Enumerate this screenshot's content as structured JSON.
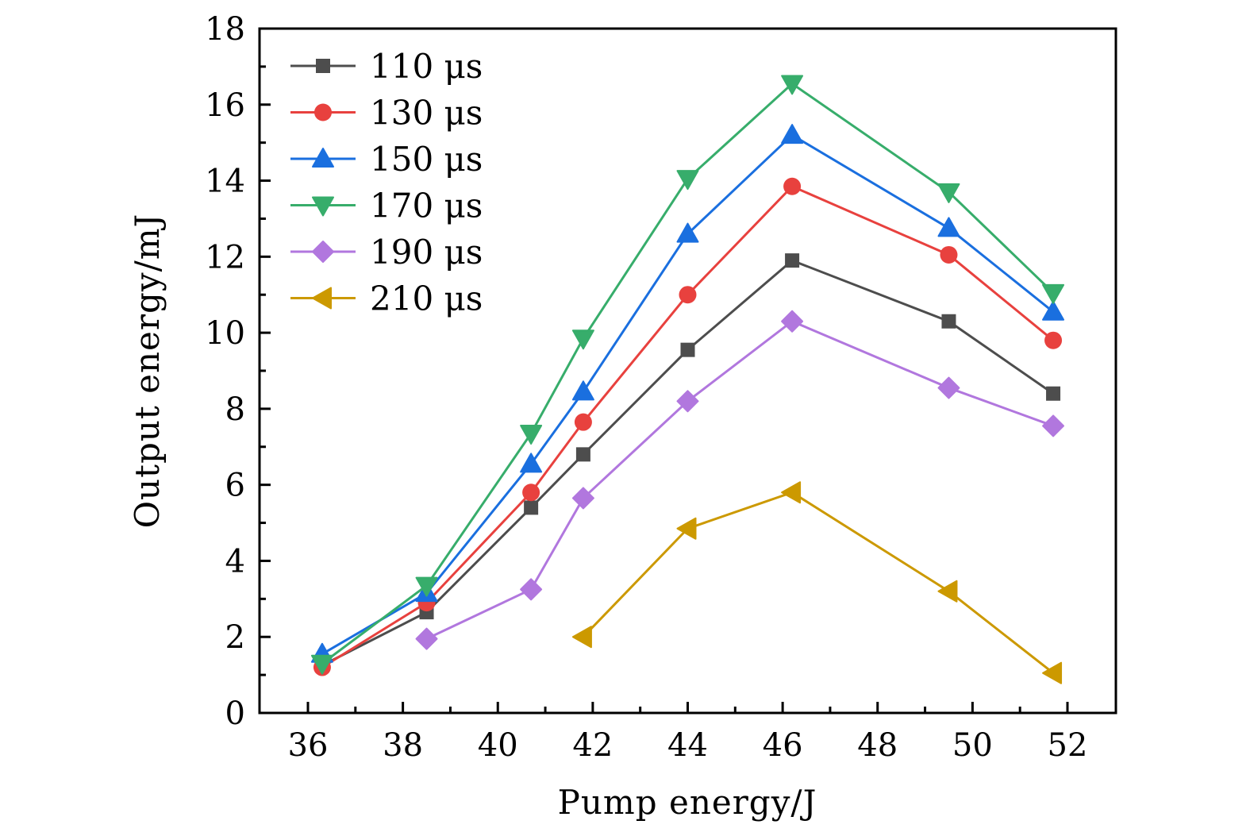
{
  "chart_data": {
    "type": "line",
    "title": "",
    "xlabel": "Pump energy/J",
    "ylabel": "Output energy/mJ",
    "xlim": [
      35,
      53
    ],
    "ylim": [
      0,
      18
    ],
    "x_ticks": [
      36,
      38,
      40,
      42,
      44,
      46,
      48,
      50,
      52
    ],
    "y_ticks": [
      0,
      2,
      4,
      6,
      8,
      10,
      12,
      14,
      16,
      18
    ],
    "grid": false,
    "legend_position": "top-left",
    "series": [
      {
        "name": "110 μs",
        "color": "#4d4d4d",
        "marker": "square",
        "x": [
          36.3,
          38.5,
          40.7,
          41.8,
          44.0,
          46.2,
          49.5,
          51.7
        ],
        "y": [
          1.25,
          2.65,
          5.4,
          6.8,
          9.55,
          11.9,
          10.3,
          8.4
        ]
      },
      {
        "name": "130 μs",
        "color": "#e8413e",
        "marker": "circle",
        "x": [
          36.3,
          38.5,
          40.7,
          41.8,
          44.0,
          46.2,
          49.5,
          51.7
        ],
        "y": [
          1.2,
          2.9,
          5.8,
          7.65,
          11.0,
          13.85,
          12.05,
          9.8
        ]
      },
      {
        "name": "150 μs",
        "color": "#1a6fdf",
        "marker": "triangle-up",
        "x": [
          36.3,
          38.5,
          40.7,
          41.8,
          44.0,
          46.2,
          49.5,
          51.7
        ],
        "y": [
          1.55,
          3.15,
          6.55,
          8.45,
          12.6,
          15.2,
          12.75,
          10.55
        ]
      },
      {
        "name": "170 μs",
        "color": "#37ad6b",
        "marker": "triangle-down",
        "x": [
          36.3,
          38.5,
          40.7,
          41.8,
          44.0,
          46.2,
          49.5,
          51.7
        ],
        "y": [
          1.3,
          3.35,
          7.35,
          9.85,
          14.05,
          16.55,
          13.7,
          11.05
        ]
      },
      {
        "name": "190 μs",
        "color": "#b177de",
        "marker": "diamond",
        "x": [
          38.5,
          40.7,
          41.8,
          44.0,
          46.2,
          49.5,
          51.7
        ],
        "y": [
          1.95,
          3.25,
          5.65,
          8.2,
          10.3,
          8.55,
          7.55
        ]
      },
      {
        "name": "210 μs",
        "color": "#cc9900",
        "marker": "triangle-left",
        "x": [
          41.8,
          44.0,
          46.2,
          49.5,
          51.7
        ],
        "y": [
          2.0,
          4.85,
          5.8,
          3.2,
          1.05
        ]
      }
    ]
  }
}
